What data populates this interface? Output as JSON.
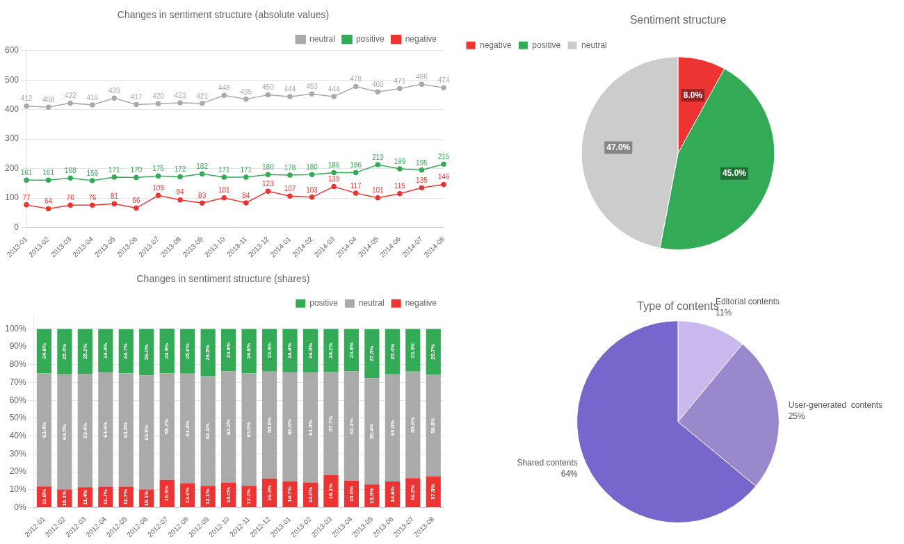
{
  "chart_data": [
    {
      "type": "line",
      "title": "Changes in sentiment structure (absolute values)",
      "categories": [
        "2013-01",
        "2013-02",
        "2013-03",
        "2013-04",
        "2013-05",
        "2013-06",
        "2013-07",
        "2013-08",
        "2013-09",
        "2013-10",
        "2013-11",
        "2013-12",
        "2014-01",
        "2014-02",
        "2014-03",
        "2014-04",
        "2014-05",
        "2014-06",
        "2014-07",
        "2014-08"
      ],
      "series": [
        {
          "name": "neutral",
          "color": "#aaaaaa",
          "values": [
            412,
            408,
            422,
            416,
            439,
            417,
            420,
            423,
            421,
            448,
            435,
            450,
            444,
            453,
            444,
            478,
            460,
            471,
            486,
            474
          ]
        },
        {
          "name": "positive",
          "color": "#33aa55",
          "values": [
            161,
            161,
            168,
            159,
            171,
            170,
            175,
            172,
            182,
            171,
            171,
            180,
            178,
            180,
            186,
            186,
            213,
            199,
            195,
            215
          ]
        },
        {
          "name": "negative",
          "color": "#ee3333",
          "values": [
            77,
            64,
            76,
            76,
            81,
            66,
            109,
            94,
            83,
            101,
            84,
            123,
            107,
            103,
            139,
            117,
            101,
            115,
            135,
            146
          ]
        }
      ],
      "ylim": [
        0,
        600
      ],
      "yticks": [
        0,
        100,
        200,
        300,
        400,
        500,
        600
      ],
      "grid": true,
      "legend": "upper right",
      "data_labels": true,
      "marker": "circle"
    },
    {
      "type": "pie",
      "title": "Sentiment structure",
      "categories": [
        "negative",
        "positive",
        "neutral"
      ],
      "values": [
        8.0,
        45.0,
        47.0
      ],
      "value_labels": [
        "8.0%",
        "45.0%",
        "47.0%"
      ],
      "colors": [
        "#ee3333",
        "#33aa55",
        "#cccccc"
      ],
      "legend": "upper left",
      "data_labels": true
    },
    {
      "type": "bar",
      "title": "Changes in sentiment structure (shares)",
      "categories": [
        "2012-01",
        "2012-02",
        "2012-03",
        "2012-04",
        "2012-05",
        "2012-06",
        "2012-07",
        "2012-08",
        "2012-09",
        "2012-10",
        "2012-11",
        "2012-12",
        "2013-01",
        "2013-02",
        "2013-03",
        "2013-04",
        "2013-05",
        "2013-06",
        "2013-07",
        "2013-08"
      ],
      "series": [
        {
          "name": "negative",
          "color": "#ee3333",
          "values": [
            11.8,
            10.1,
            11.4,
            11.7,
            11.7,
            10.1,
            15.5,
            13.6,
            12.1,
            14.0,
            12.2,
            16.3,
            14.7,
            14.0,
            18.1,
            15.0,
            13.0,
            14.6,
            16.5,
            17.5
          ],
          "value_labels": [
            "11.8%",
            "10.1%",
            "11.4%",
            "11.7%",
            "11.7%",
            "10.1%",
            "15.5%",
            "13.6%",
            "12.1%",
            "14.0%",
            "12.2%",
            "16.3%",
            "14.7%",
            "14.0%",
            "18.1%",
            "15.0%",
            "13.0%",
            "14.6%",
            "16.5%",
            "17.5%"
          ]
        },
        {
          "name": "neutral",
          "color": "#aaaaaa",
          "values": [
            63.4,
            64.5,
            63.4,
            63.9,
            63.5,
            63.9,
            59.7,
            61.4,
            61.4,
            62.2,
            63.0,
            59.8,
            60.9,
            61.5,
            57.7,
            61.2,
            59.4,
            60.0,
            59.6,
            56.8
          ],
          "value_labels": [
            "63.4%",
            "64.5%",
            "63.4%",
            "63.9%",
            "63.5%",
            "63.9%",
            "59.7%",
            "61.4%",
            "61.4%",
            "62.2%",
            "63.0%",
            "59.8%",
            "60.9%",
            "61.5%",
            "57.7%",
            "61.2%",
            "59.4%",
            "60.0%",
            "59.6%",
            "56.8%"
          ]
        },
        {
          "name": "positive",
          "color": "#33aa55",
          "values": [
            24.8,
            25.4,
            25.2,
            24.4,
            24.7,
            26.0,
            24.9,
            25.0,
            26.5,
            23.8,
            24.8,
            23.9,
            24.4,
            24.5,
            24.2,
            23.8,
            27.5,
            25.4,
            23.9,
            25.7
          ],
          "value_labels": [
            "24.8%",
            "25.4%",
            "25.2%",
            "24.4%",
            "24.7%",
            "26.0%",
            "24.9%",
            "25.0%",
            "26.5%",
            "23.8%",
            "24.8%",
            "23.9%",
            "24.4%",
            "24.5%",
            "24.2%",
            "23.8%",
            "27.5%",
            "25.4%",
            "23.9%",
            "25.7%"
          ]
        }
      ],
      "stacked": true,
      "ylim": [
        0,
        108
      ],
      "yticks": [
        {
          "value": 0,
          "label": "0%"
        },
        {
          "value": 10,
          "label": "10%"
        },
        {
          "value": 20,
          "label": "20%"
        },
        {
          "value": 30,
          "label": "30%"
        },
        {
          "value": 40,
          "label": "40%"
        },
        {
          "value": 50,
          "label": "50%"
        },
        {
          "value": 60,
          "label": "60%"
        },
        {
          "value": 70,
          "label": "70%"
        },
        {
          "value": 80,
          "label": "80%"
        },
        {
          "value": 90,
          "label": "90%"
        },
        {
          "value": 100,
          "label": "100%"
        }
      ],
      "grid": true,
      "legend": "upper right",
      "data_labels": true
    },
    {
      "type": "pie",
      "title": "Type of contents",
      "categories": [
        "Editorial contents",
        "User-generated  contents",
        "Shared contents"
      ],
      "values": [
        11,
        25,
        64
      ],
      "value_labels": [
        "11%",
        "25%",
        "64%"
      ],
      "colors": [
        "#c8b8ee",
        "#9988cc",
        "#7766cc"
      ],
      "data_labels": true
    }
  ]
}
